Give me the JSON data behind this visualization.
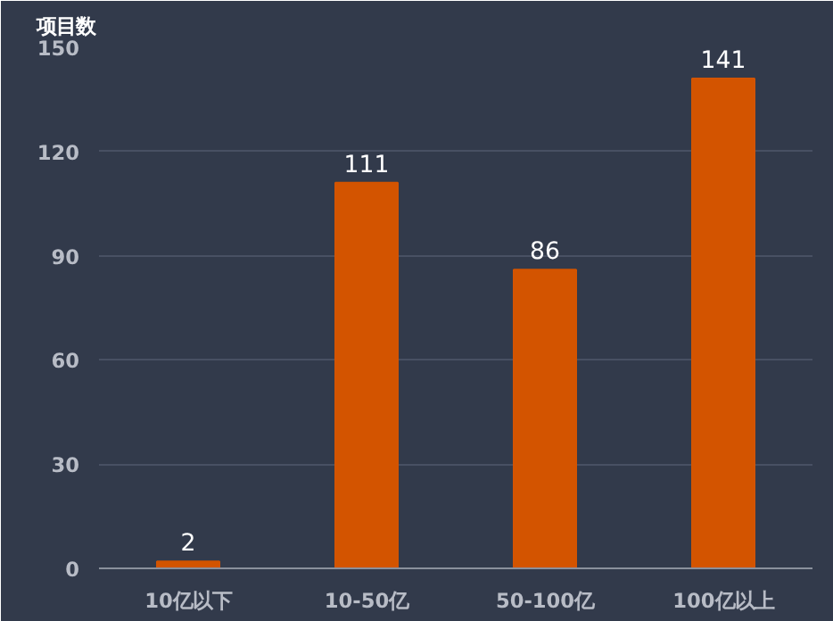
{
  "chart_data": {
    "type": "bar",
    "ylabel": "项目数",
    "categories": [
      "10亿以下",
      "10-50亿",
      "50-100亿",
      "100亿以上"
    ],
    "values": [
      2,
      111,
      86,
      141
    ],
    "color": "#d35400",
    "ylim": [
      0,
      150
    ],
    "yticks": [
      0,
      30,
      60,
      90,
      120,
      150
    ],
    "grid": "y",
    "data_labels": true
  }
}
